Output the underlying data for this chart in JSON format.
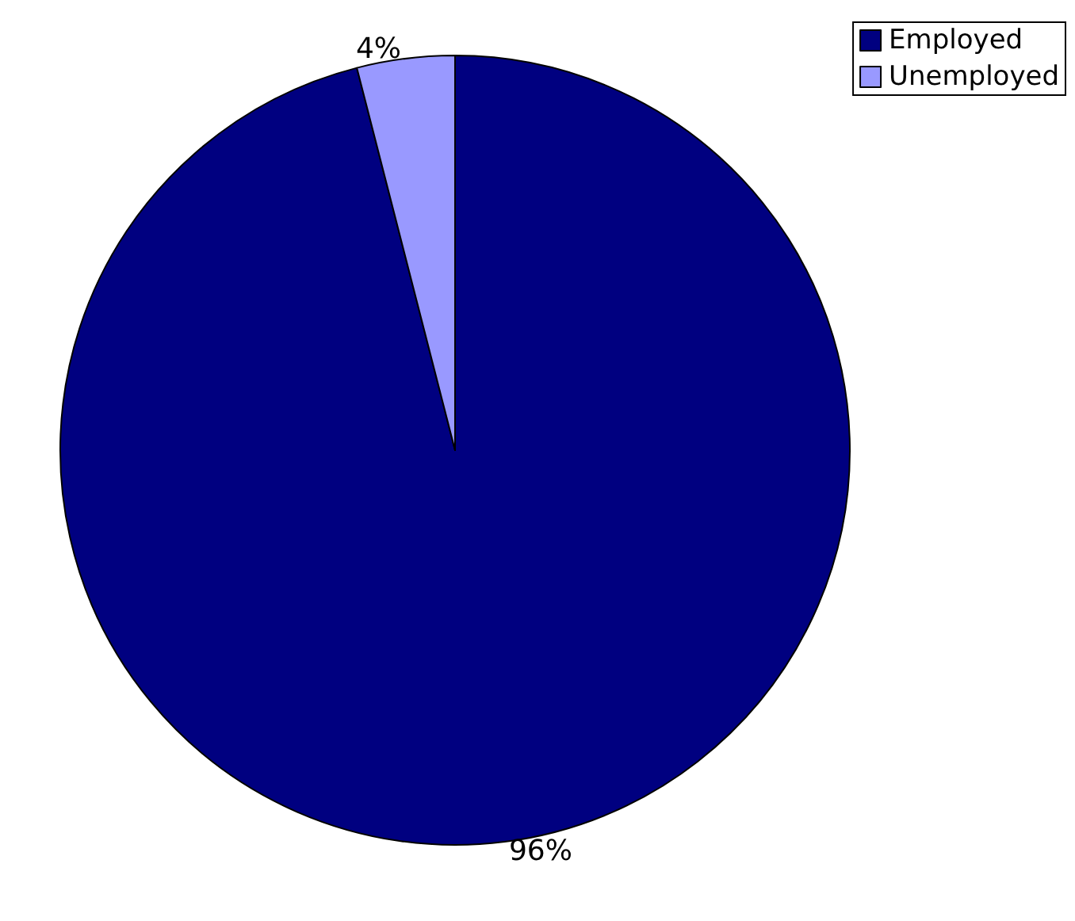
{
  "chart_data": {
    "type": "pie",
    "categories": [
      "Employed",
      "Unemployed"
    ],
    "values": [
      96,
      4
    ],
    "colors": [
      "#000080",
      "#9999ff"
    ],
    "value_labels": [
      "96%",
      "4%"
    ],
    "legend": "top right"
  }
}
